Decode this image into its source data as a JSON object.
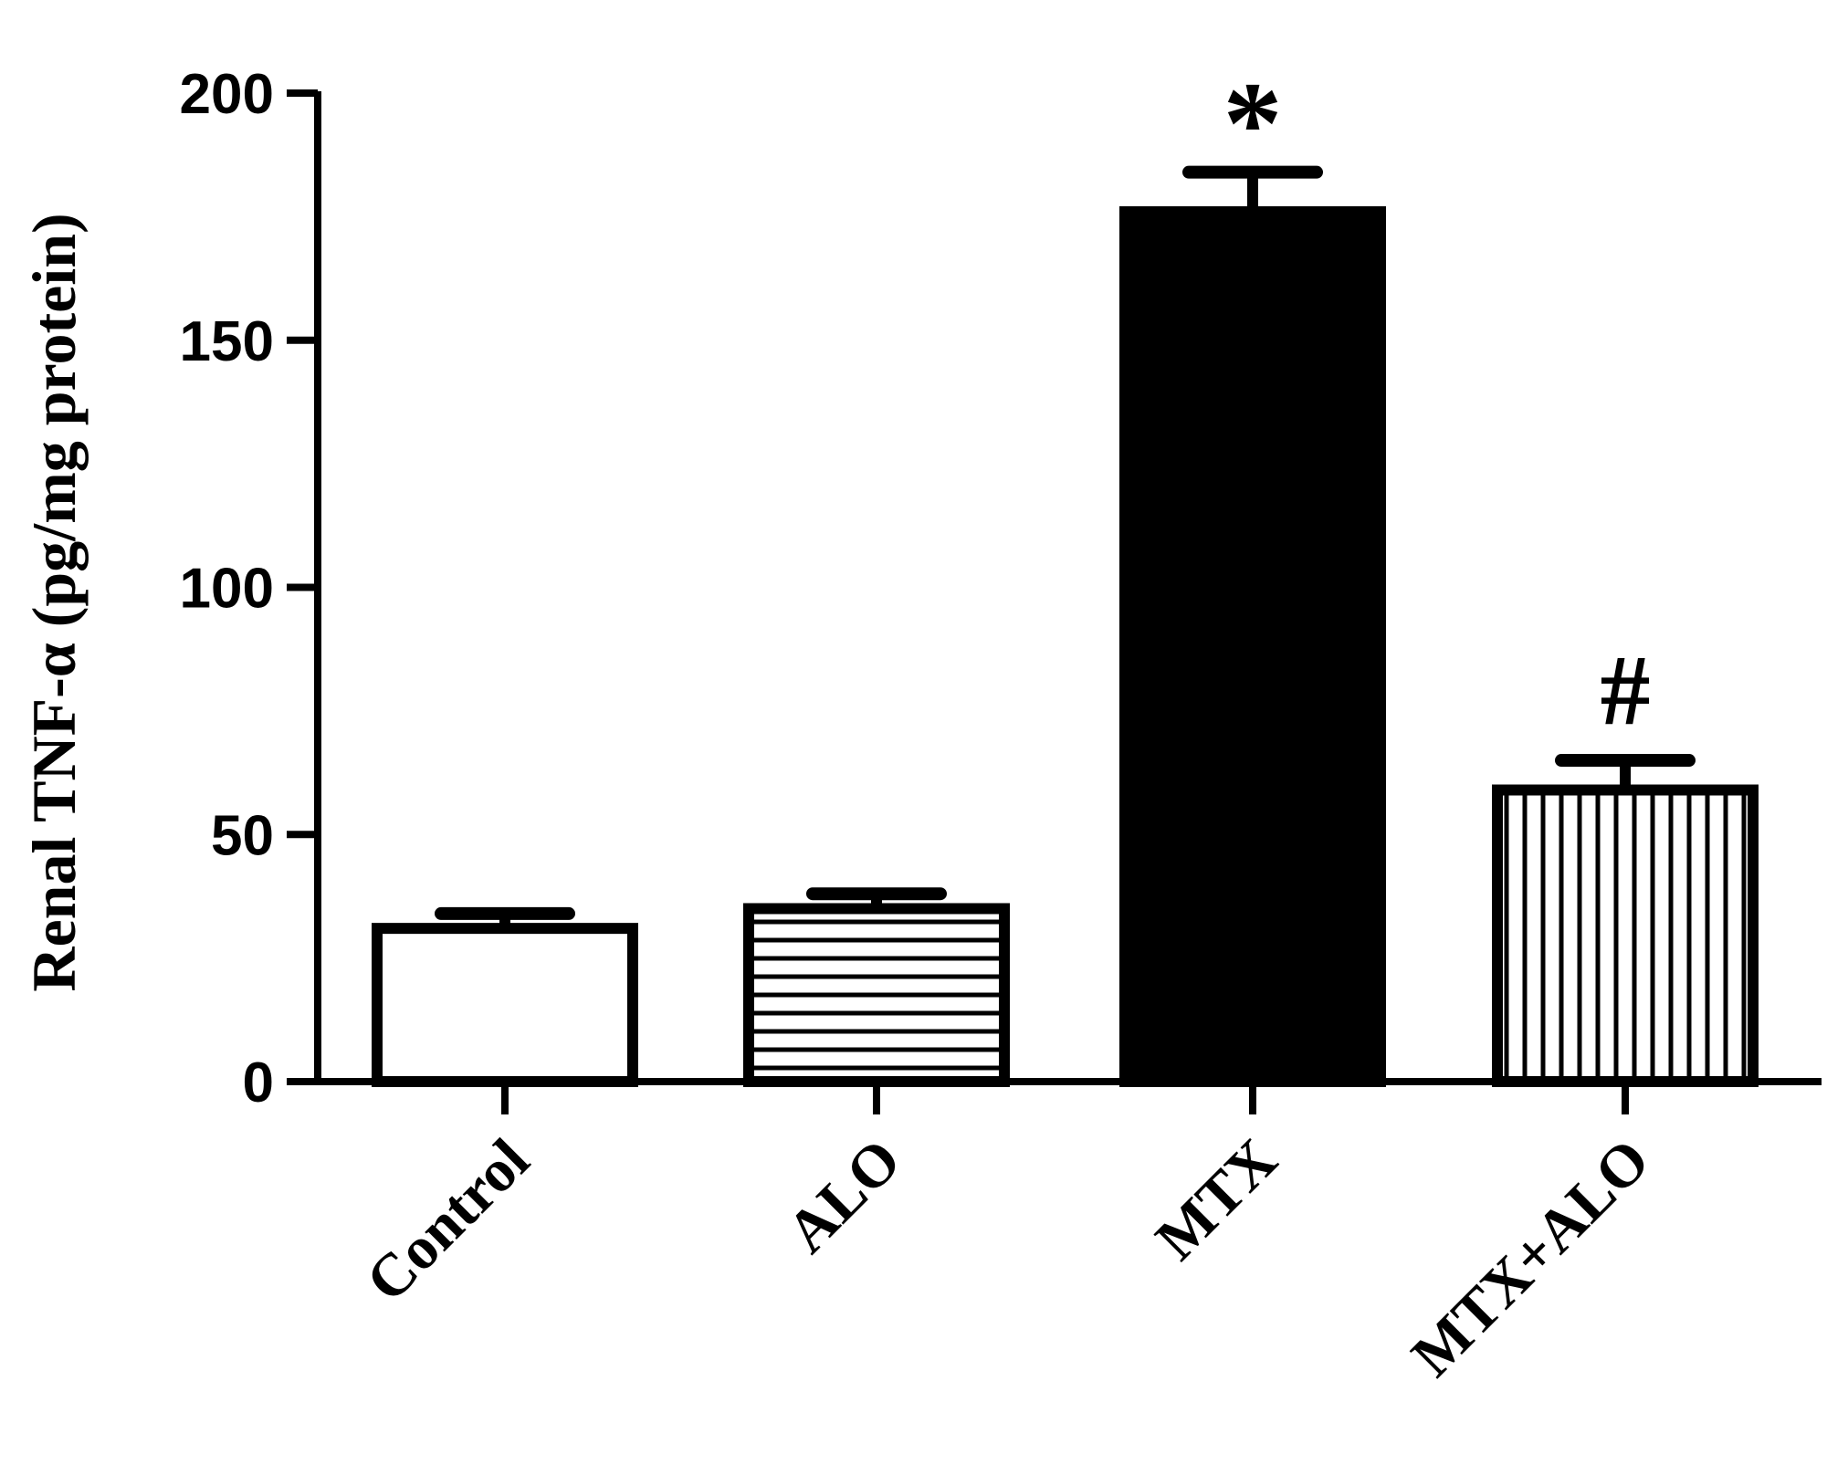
{
  "chart_data": {
    "type": "bar",
    "title": "",
    "xlabel": "",
    "ylabel": "Renal TNF-α (pg/mg protein)",
    "ylim": [
      0,
      200
    ],
    "yticks": [
      0,
      50,
      100,
      150,
      200
    ],
    "ytick_labels": [
      "0",
      "50",
      "100",
      "150",
      "200"
    ],
    "categories": [
      "Control",
      "ALO",
      "MTX",
      "MTX+ALO"
    ],
    "values": [
      31,
      35,
      176,
      59
    ],
    "errors": [
      3,
      3,
      8,
      6
    ],
    "annotations": [
      "",
      "",
      "*",
      "#"
    ],
    "fills": [
      "white",
      "horizontal-lines",
      "solid-black",
      "vertical-lines"
    ],
    "grid": false,
    "legend": "none",
    "colors": {
      "ink": "#000000",
      "background": "#ffffff"
    }
  }
}
